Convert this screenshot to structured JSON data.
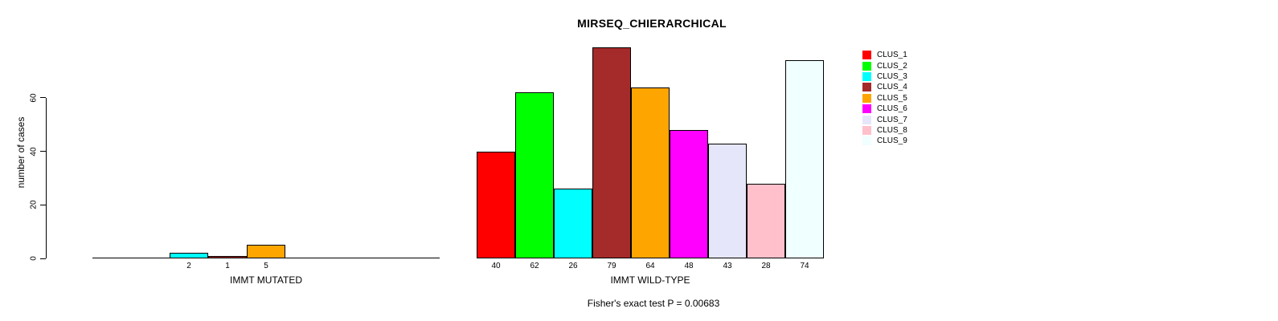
{
  "chart_data": {
    "type": "bar",
    "title": "MIRSEQ_CHIERARCHICAL",
    "ylabel": "number of cases",
    "footer": "Fisher's exact test P = 0.00683",
    "yticks": [
      0,
      20,
      40,
      60
    ],
    "ylim": [
      0,
      80
    ],
    "grid": false,
    "legend_position": "right",
    "clusters": [
      {
        "label": "CLUS_1",
        "color": "#FF0000"
      },
      {
        "label": "CLUS_2",
        "color": "#00FF00"
      },
      {
        "label": "CLUS_3",
        "color": "#00FFFF"
      },
      {
        "label": "CLUS_4",
        "color": "#A52A2A"
      },
      {
        "label": "CLUS_5",
        "color": "#FFA500"
      },
      {
        "label": "CLUS_6",
        "color": "#FF00FF"
      },
      {
        "label": "CLUS_7",
        "color": "#E6E6FA"
      },
      {
        "label": "CLUS_8",
        "color": "#FFC0CB"
      },
      {
        "label": "CLUS_9",
        "color": "#F0FFFF"
      }
    ],
    "groups": [
      {
        "label": "IMMT MUTATED",
        "values": [
          0,
          0,
          2,
          1,
          5,
          0,
          0,
          0,
          0
        ]
      },
      {
        "label": "IMMT WILD-TYPE",
        "values": [
          40,
          62,
          26,
          79,
          64,
          48,
          43,
          28,
          74
        ]
      }
    ]
  }
}
